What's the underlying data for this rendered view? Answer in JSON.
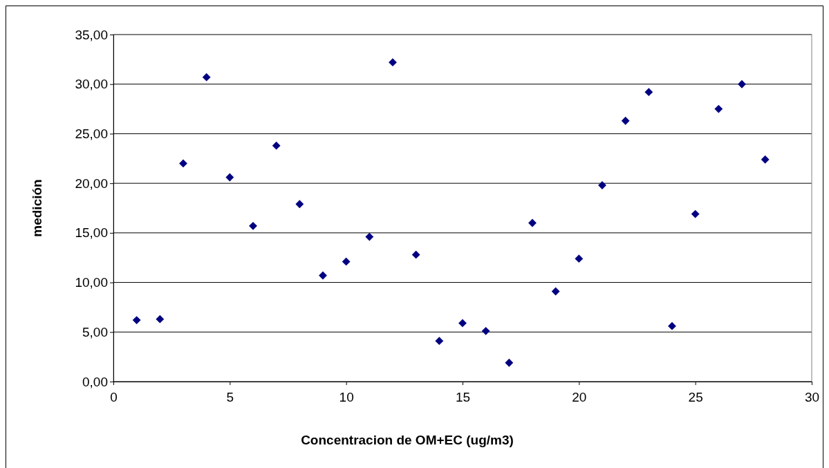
{
  "chart_data": {
    "type": "scatter",
    "xlabel": "Concentracion de OM+EC (ug/m3)",
    "ylabel": "medición",
    "x": [
      1,
      2,
      3,
      4,
      5,
      6,
      7,
      8,
      9,
      10,
      11,
      12,
      13,
      14,
      15,
      16,
      17,
      18,
      19,
      20,
      21,
      22,
      23,
      24,
      25,
      26,
      27,
      28
    ],
    "series": [
      {
        "color": "#000080",
        "values": [
          6.2,
          6.3,
          22.0,
          30.7,
          20.6,
          15.7,
          23.8,
          17.9,
          10.7,
          12.1,
          14.6,
          32.2,
          12.8,
          4.1,
          5.9,
          5.1,
          1.9,
          16.0,
          9.1,
          12.4,
          19.8,
          26.3,
          29.2,
          5.6,
          16.9,
          27.5,
          30.0,
          22.4
        ]
      }
    ],
    "xlim": [
      0,
      30
    ],
    "xticks": [
      0,
      5,
      10,
      15,
      20,
      25,
      30
    ],
    "ylim": [
      0,
      35
    ],
    "yticks": [
      {
        "value": 0,
        "label": "0,00"
      },
      {
        "value": 5,
        "label": "5,00"
      },
      {
        "value": 10,
        "label": "10,00"
      },
      {
        "value": 15,
        "label": "15,00"
      },
      {
        "value": 20,
        "label": "20,00"
      },
      {
        "value": 25,
        "label": "25,00"
      },
      {
        "value": 30,
        "label": "30,00"
      },
      {
        "value": 35,
        "label": "35,00"
      }
    ],
    "grid": "y",
    "marker": "diamond"
  }
}
